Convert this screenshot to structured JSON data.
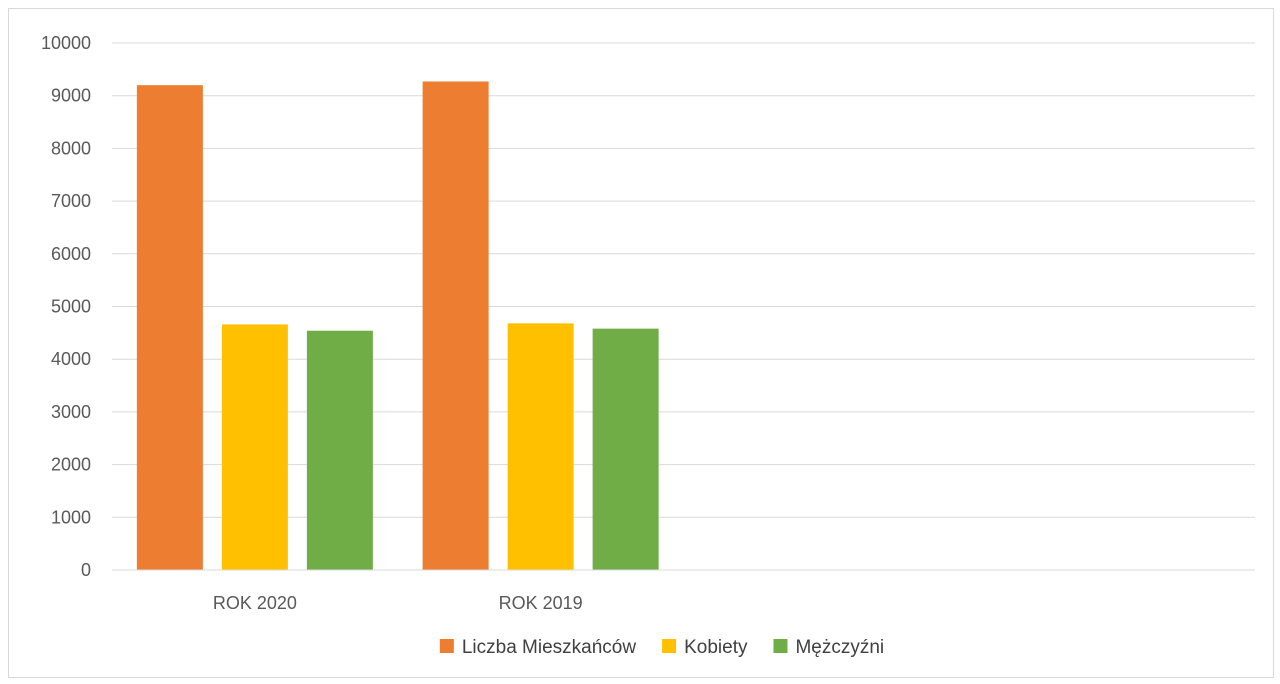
{
  "chart_data": {
    "type": "bar",
    "categories": [
      "ROK 2020",
      "ROK 2019",
      "",
      ""
    ],
    "series": [
      {
        "name": "Liczba Mieszkańców",
        "color": "#ED7D31",
        "values": [
          9200,
          9270,
          null,
          null
        ]
      },
      {
        "name": "Kobiety",
        "color": "#FFC000",
        "values": [
          4660,
          4680,
          null,
          null
        ]
      },
      {
        "name": "Mężczyźni",
        "color": "#70AD47",
        "values": [
          4540,
          4580,
          null,
          null
        ]
      }
    ],
    "ylim": [
      0,
      10000
    ],
    "yticks": [
      "0",
      "1000",
      "2000",
      "3000",
      "4000",
      "5000",
      "6000",
      "7000",
      "8000",
      "9000",
      "10000"
    ],
    "ytick_values": [
      0,
      1000,
      2000,
      3000,
      4000,
      5000,
      6000,
      7000,
      8000,
      9000,
      10000
    ],
    "grid": true,
    "legend_position": "bottom",
    "title": "",
    "xlabel": "",
    "ylabel": ""
  }
}
